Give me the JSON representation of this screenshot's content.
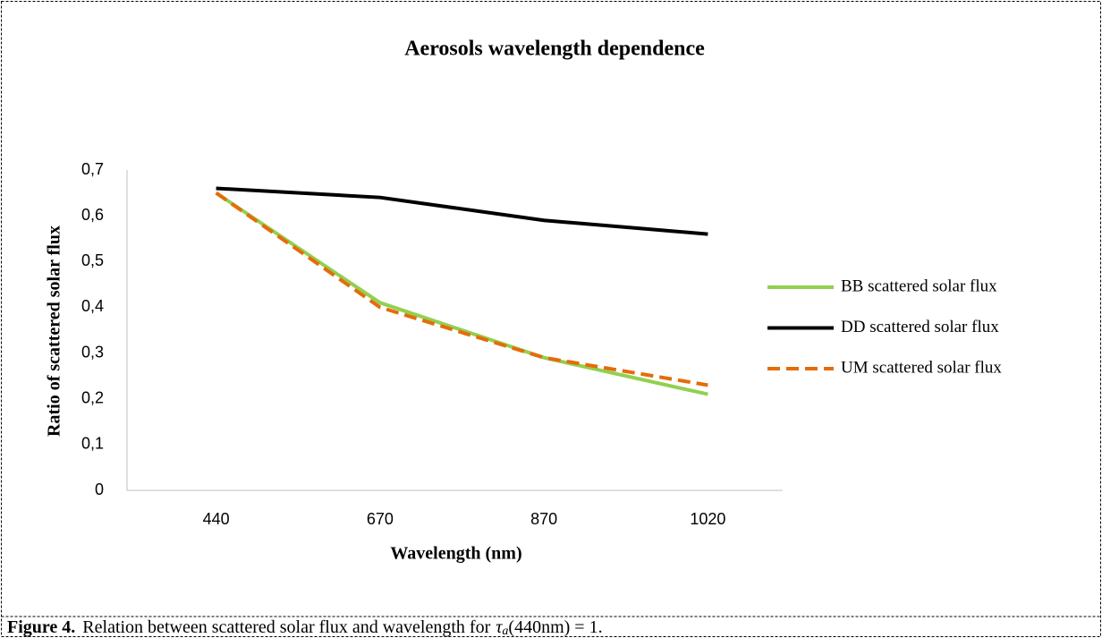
{
  "chart_data": {
    "type": "line",
    "title": "Aerosols wavelength dependence",
    "x_label": "Wavelength (nm)",
    "y_label": "Ratio of scattered solar flux",
    "categories": [
      "440",
      "670",
      "870",
      "1020"
    ],
    "series": [
      {
        "name": "BB scattered solar flux",
        "color": "#92d050",
        "dash": false,
        "values": [
          0.65,
          0.41,
          0.29,
          0.21
        ]
      },
      {
        "name": "DD scattered solar flux",
        "color": "#000000",
        "dash": false,
        "values": [
          0.66,
          0.64,
          0.59,
          0.56
        ]
      },
      {
        "name": "UM scattered solar flux",
        "color": "#e46c0a",
        "dash": true,
        "values": [
          0.65,
          0.4,
          0.29,
          0.23
        ]
      }
    ],
    "ylim": [
      0,
      0.7
    ],
    "yticks": [
      0,
      {
        "value": 0.1,
        "label": "0,1"
      },
      {
        "value": 0.2,
        "label": "0,2"
      },
      {
        "value": 0.3,
        "label": "0,3"
      },
      {
        "value": 0.4,
        "label": "0,4"
      },
      {
        "value": 0.5,
        "label": "0,5"
      },
      {
        "value": 0.6,
        "label": "0,6"
      },
      {
        "value": 0.7,
        "label": "0,7"
      }
    ],
    "grid": false,
    "legend": "right"
  },
  "caption": {
    "label": "Figure 4.",
    "text": "Relation between scattered solar flux and wavelength for",
    "symbol": "τ",
    "subscript": "a",
    "rest": "(440nm) = 1."
  }
}
